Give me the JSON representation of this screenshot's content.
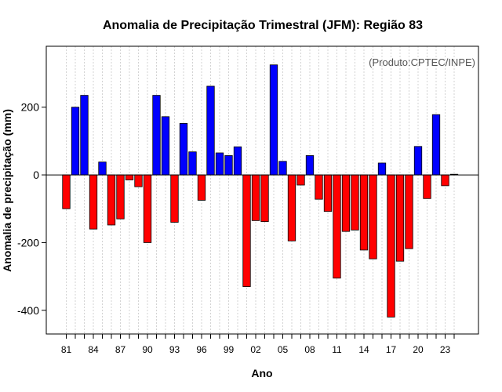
{
  "chart_data": {
    "type": "bar",
    "title": "Anomalia de Precipitação Trimestral (JFM): Região 83",
    "xlabel": "Ano",
    "ylabel": "Anomalia de precipitação (mm)",
    "annotation": "(Produto:CPTEC/INPE)",
    "ylim": [
      -470,
      380
    ],
    "yticks": [
      -400,
      -200,
      0,
      200
    ],
    "x_tick_labels": [
      "81",
      "84",
      "87",
      "90",
      "93",
      "96",
      "99",
      "02",
      "05",
      "08",
      "11",
      "14",
      "17",
      "20",
      "23"
    ],
    "categories": [
      "1981",
      "1982",
      "1983",
      "1984",
      "1985",
      "1986",
      "1987",
      "1988",
      "1989",
      "1990",
      "1991",
      "1992",
      "1993",
      "1994",
      "1995",
      "1996",
      "1997",
      "1998",
      "1999",
      "2000",
      "2001",
      "2002",
      "2003",
      "2004",
      "2005",
      "2006",
      "2007",
      "2008",
      "2009",
      "2010",
      "2011",
      "2012",
      "2013",
      "2014",
      "2015",
      "2016",
      "2017",
      "2018",
      "2019",
      "2020",
      "2021",
      "2022",
      "2023",
      "2024"
    ],
    "values": [
      -100,
      200,
      235,
      -160,
      38,
      -148,
      -130,
      -15,
      -35,
      -200,
      235,
      172,
      -140,
      152,
      68,
      -75,
      262,
      65,
      57,
      83,
      -330,
      -135,
      -138,
      325,
      40,
      -195,
      -30,
      57,
      -72,
      -108,
      -305,
      -167,
      -163,
      -222,
      -248,
      35,
      -420,
      -255,
      -218,
      84,
      -70,
      178,
      -32,
      2
    ],
    "colors": {
      "positive": "#0000ff",
      "negative": "#ff0000",
      "grid": "#d3d3d3"
    },
    "grid": true
  }
}
